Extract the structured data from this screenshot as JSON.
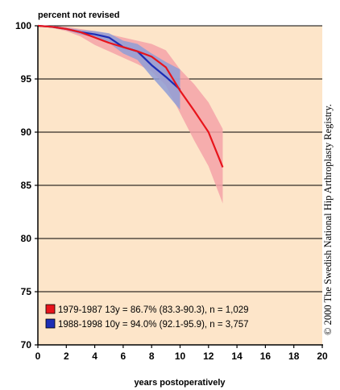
{
  "chart_data": {
    "type": "line",
    "ylabel": "percent not revised",
    "xlabel": "years postoperatively",
    "xlim": [
      0,
      20
    ],
    "ylim": [
      70,
      100
    ],
    "x_ticks": [
      "0",
      "2",
      "4",
      "6",
      "8",
      "10",
      "12",
      "14",
      "16",
      "18",
      "20"
    ],
    "y_ticks": [
      "100",
      "95",
      "90",
      "85",
      "80",
      "75",
      "70"
    ],
    "grid": "horizontal",
    "legend_position": "bottom-left",
    "series": [
      {
        "name": "1979-1987",
        "legend_label": "1979-1987  13y = 86.7% (83.3-90.3), n = 1,029",
        "color": "#e8141b",
        "band_color": "#f5a3a8",
        "x": [
          0,
          1,
          2,
          3,
          4,
          5,
          6,
          7,
          8,
          9,
          10,
          11,
          12,
          13
        ],
        "y": [
          100,
          99.9,
          99.7,
          99.4,
          98.9,
          98.4,
          98.0,
          97.6,
          97.1,
          96.1,
          93.9,
          92.0,
          90.0,
          86.7
        ],
        "ci_lower": [
          100,
          99.8,
          99.5,
          99.0,
          98.2,
          97.6,
          97.0,
          96.4,
          95.7,
          94.4,
          91.8,
          89.2,
          86.8,
          83.3
        ],
        "ci_upper": [
          100,
          100,
          99.9,
          99.7,
          99.5,
          99.2,
          98.9,
          98.6,
          98.3,
          97.7,
          95.9,
          94.5,
          92.8,
          90.3
        ]
      },
      {
        "name": "1988-1998",
        "legend_label": "1988-1998  10y = 94.0% (92.1-95.9), n = 3,757",
        "color": "#1c2db5",
        "band_color": "#8f9ed6",
        "x": [
          0,
          1,
          2,
          3,
          4,
          5,
          6,
          7,
          8,
          9,
          10
        ],
        "y": [
          100,
          99.9,
          99.7,
          99.4,
          99.2,
          98.9,
          98.0,
          97.6,
          96.3,
          95.2,
          94.0
        ],
        "ci_lower": [
          100,
          99.8,
          99.6,
          99.2,
          98.9,
          98.4,
          97.4,
          96.8,
          95.2,
          93.7,
          92.1
        ],
        "ci_upper": [
          100,
          100,
          99.8,
          99.6,
          99.5,
          99.3,
          98.6,
          98.3,
          97.4,
          96.6,
          95.9
        ]
      }
    ]
  },
  "copyright": "© 2000 The Swedish National Hip Arthroplasty Registry.",
  "colors": {
    "plot_background": "#fde5c9"
  }
}
